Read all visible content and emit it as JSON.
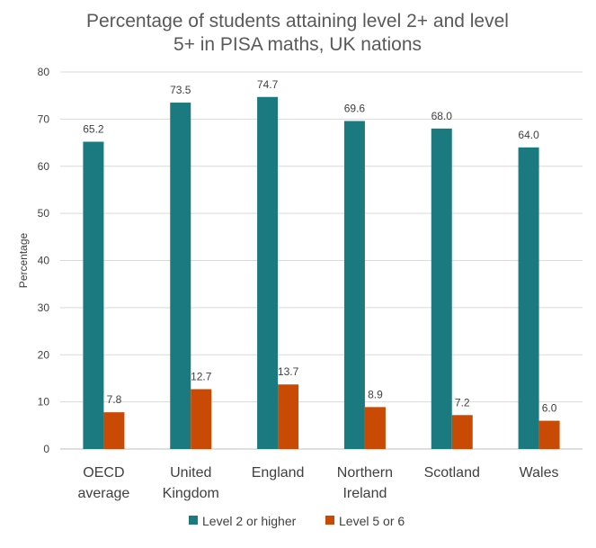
{
  "chart_data": {
    "type": "bar",
    "title": [
      "Percentage of students attaining level 2+ and level",
      "5+ in PISA maths, UK nations"
    ],
    "ylabel": "Percentage",
    "xlabel": "",
    "ylim": [
      0,
      80
    ],
    "yticks": [
      "0",
      "10",
      "20",
      "30",
      "40",
      "50",
      "60",
      "70",
      "80"
    ],
    "categories": [
      [
        "OECD",
        "average"
      ],
      [
        "United",
        "Kingdom"
      ],
      [
        "England"
      ],
      [
        "Northern",
        "Ireland"
      ],
      [
        "Scotland"
      ],
      [
        "Wales"
      ]
    ],
    "series": [
      {
        "name": "Level 2 or higher",
        "color": "#1b7a80",
        "values": [
          65.2,
          73.5,
          74.7,
          69.6,
          68.0,
          64.0
        ],
        "labels": [
          "65.2",
          "73.5",
          "74.7",
          "69.6",
          "68.0",
          "64.0"
        ]
      },
      {
        "name": "Level 5 or 6",
        "color": "#c84a05",
        "values": [
          7.8,
          12.7,
          13.7,
          8.9,
          7.2,
          6.0
        ],
        "labels": [
          "7.8",
          "12.7",
          "13.7",
          "8.9",
          "7.2",
          "6.0"
        ]
      }
    ],
    "grid": true,
    "legend": "bottom"
  }
}
